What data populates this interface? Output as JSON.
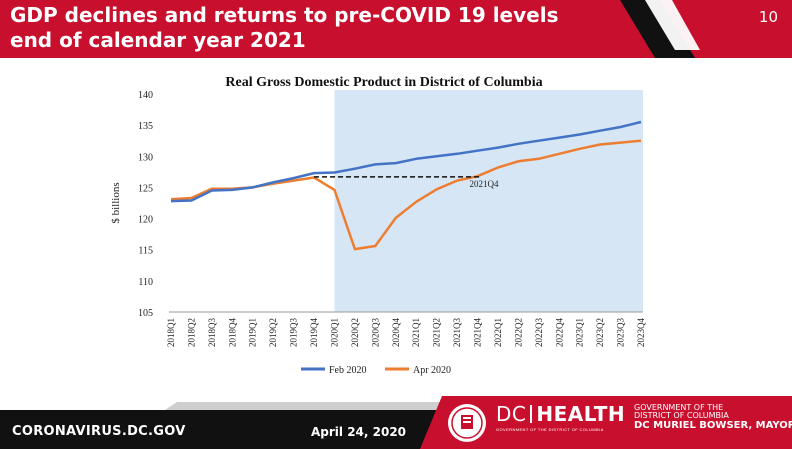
{
  "slide": {
    "title_line1": "GDP declines and returns to pre-COVID 19 levels",
    "title_line2": "end of calendar year 2021",
    "number": "10"
  },
  "footer": {
    "website": "CORONAVIRUS.DC.GOV",
    "date": "April 24, 2020",
    "dc_health_prefix": "DC",
    "dc_health_main": "HEALTH",
    "dc_health_sub": "GOVERNMENT OF THE DISTRICT OF COLUMBIA",
    "gov_line1": "GOVERNMENT OF THE",
    "gov_line2": "DISTRICT OF COLUMBIA",
    "gov_mayor": "MURIEL BOWSER, MAYOR",
    "gov_dc": "DC"
  },
  "colors": {
    "brand_red": "#c8102e",
    "feb_series": "#4472c4",
    "apr_series": "#ed7d31",
    "shade": "#d6e6f5"
  },
  "chart_data": {
    "type": "line",
    "title": "Real Gross Domestic Product in District of Columbia",
    "ylabel": "$ billions",
    "xlabel": "",
    "ylim": [
      105,
      140
    ],
    "yticks": [
      105,
      110,
      115,
      120,
      125,
      130,
      135,
      140
    ],
    "categories": [
      "2018Q1",
      "2018Q2",
      "2018Q3",
      "2018Q4",
      "2019Q1",
      "2019Q2",
      "2019Q3",
      "2019Q4",
      "2020Q1",
      "2020Q2",
      "2020Q3",
      "2020Q4",
      "2021Q1",
      "2021Q2",
      "2021Q3",
      "2021Q4",
      "2022Q1",
      "2022Q2",
      "2022Q3",
      "2022Q4",
      "2023Q1",
      "2023Q2",
      "2023Q3",
      "2023Q4"
    ],
    "shaded_region": {
      "start": "2020Q1",
      "end": "2023Q4"
    },
    "series": [
      {
        "name": "Feb 2020",
        "values": [
          122.8,
          122.9,
          124.5,
          124.6,
          125.0,
          125.8,
          126.5,
          127.3,
          127.4,
          128.0,
          128.7,
          128.9,
          129.6,
          130.0,
          130.4,
          130.9,
          131.4,
          132.0,
          132.5,
          133.0,
          133.5,
          134.1,
          134.7,
          135.5
        ]
      },
      {
        "name": "Apr 2020",
        "values": [
          123.1,
          123.3,
          124.8,
          124.8,
          125.0,
          125.6,
          126.1,
          126.6,
          124.6,
          115.1,
          115.6,
          120.1,
          122.7,
          124.7,
          126.1,
          126.8,
          128.2,
          129.2,
          129.6,
          130.4,
          131.2,
          131.9,
          132.2,
          132.5
        ]
      }
    ],
    "annotation": {
      "text": "2021Q4",
      "from": "2019Q4",
      "to": "2021Q4",
      "y": 126.7
    },
    "legend": {
      "position": "bottom",
      "entries": [
        "Feb 2020",
        "Apr 2020"
      ]
    },
    "grid": false
  }
}
